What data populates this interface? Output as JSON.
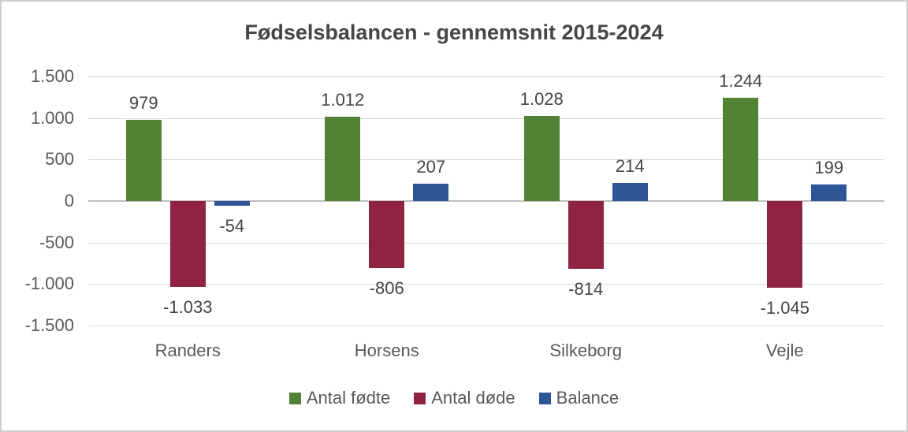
{
  "chart": {
    "frame_border_color": "#cfcfcf",
    "background_color": "#ffffff",
    "gridline_color": "#d9d9d9",
    "zero_axis_color": "#bfbfbf",
    "text_color": "#595959",
    "data_label_color": "#444444",
    "title_color": "#464646"
  },
  "chart_data": {
    "type": "bar",
    "title": "Fødselsbalancen - gennemsnit 2015-2024",
    "categories": [
      "Randers",
      "Horsens",
      "Silkeborg",
      "Vejle"
    ],
    "series": [
      {
        "name": "Antal fødte",
        "color": "#538135",
        "values": [
          979,
          1012,
          1028,
          1244
        ],
        "labels": [
          "979",
          "1.012",
          "1.028",
          "1.244"
        ]
      },
      {
        "name": "Antal døde",
        "color": "#8e2342",
        "values": [
          -1033,
          -806,
          -814,
          -1045
        ],
        "labels": [
          "-1.033",
          "-806",
          "-814",
          "-1.045"
        ]
      },
      {
        "name": "Balance",
        "color": "#2f5597",
        "values": [
          -54,
          207,
          214,
          199
        ],
        "labels": [
          "-54",
          "207",
          "214",
          "199"
        ]
      }
    ],
    "y_axis": {
      "min": -1500,
      "max": 1500,
      "step": 500,
      "tick_labels": [
        "1.500",
        "1.000",
        "500",
        "0",
        "-500",
        "-1.000",
        "-1.500"
      ]
    },
    "grid": true,
    "legend_position": "bottom",
    "xlabel": "",
    "ylabel": ""
  }
}
